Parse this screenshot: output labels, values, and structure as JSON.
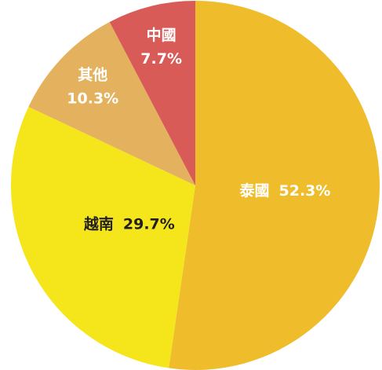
{
  "chart_data": {
    "type": "pie",
    "categories": [
      "泰國",
      "越南",
      "其他",
      "中國"
    ],
    "values": [
      52.3,
      29.7,
      10.3,
      7.7
    ],
    "value_labels": [
      "52.3%",
      "29.7%",
      "10.3%",
      "7.7%"
    ],
    "colors": [
      "#efbd2b",
      "#f5e61b",
      "#e4b25f",
      "#d95b57"
    ]
  }
}
